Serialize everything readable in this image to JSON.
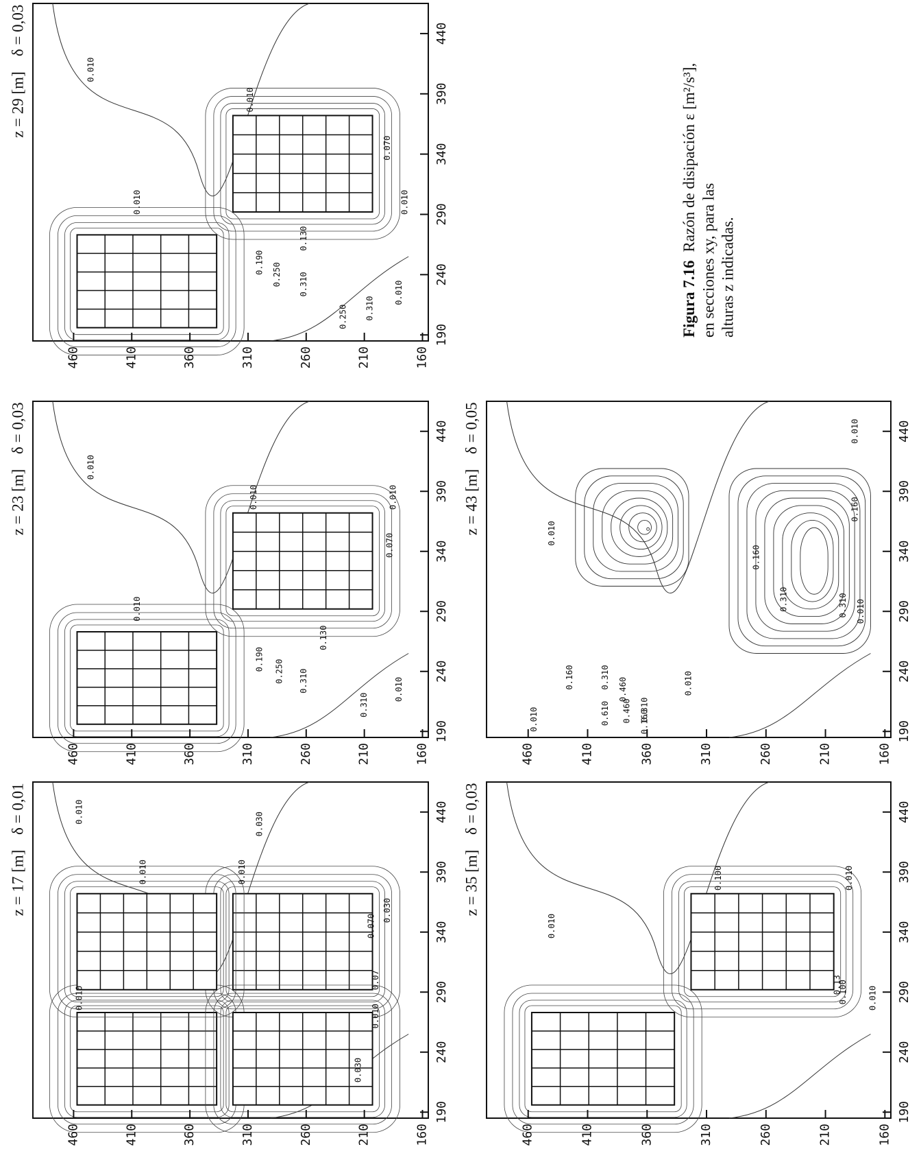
{
  "caption": {
    "figure": "Figura 7.16",
    "lines": [
      "Razón de disipación ε [m²/s³],",
      "en secciones xy, para las",
      "alturas z indicadas."
    ]
  },
  "panels": [
    {
      "z_label": "z = 29 [m]",
      "delta_label": "δ = 0,03",
      "xlim": [
        185,
        465
      ],
      "ylim": [
        155,
        495
      ],
      "xticks": [
        190,
        240,
        290,
        340,
        390,
        440
      ],
      "yticks": [
        160,
        210,
        260,
        310,
        360,
        410,
        460
      ],
      "contour_labels": [
        "0.010",
        "0.010",
        "0.010",
        "0.130",
        "0.250",
        "0.310",
        "0.310",
        "0.250",
        "0.190",
        "0.070",
        "0.010",
        "0.010"
      ]
    },
    {
      "z_label": "z = 23 [m]",
      "delta_label": "δ = 0,03",
      "xlim": [
        185,
        465
      ],
      "ylim": [
        155,
        495
      ],
      "xticks": [
        190,
        240,
        290,
        340,
        390,
        440
      ],
      "yticks": [
        160,
        210,
        260,
        310,
        360,
        410,
        460
      ],
      "contour_labels": [
        "0.010",
        "0.010",
        "0.010",
        "0.130",
        "0.250",
        "0.310",
        "0.190",
        "0.310",
        "0.070",
        "0.010",
        "0.010"
      ]
    },
    {
      "z_label": "z = 17 [m]",
      "delta_label": "δ = 0,01",
      "xlim": [
        185,
        465
      ],
      "ylim": [
        155,
        495
      ],
      "xticks": [
        190,
        240,
        290,
        340,
        390,
        440
      ],
      "yticks": [
        160,
        210,
        260,
        310,
        360,
        410,
        460
      ],
      "contour_labels": [
        "0.010",
        "0.030",
        "0.010",
        "0.010",
        "0.010",
        "0.030",
        "0.070",
        "0.07",
        "0.010",
        "0.030"
      ]
    },
    {
      "z_label": "z = 43 [m]",
      "delta_label": "δ = 0,05",
      "xlim": [
        185,
        465
      ],
      "ylim": [
        155,
        495
      ],
      "xticks": [
        190,
        240,
        290,
        340,
        390,
        440
      ],
      "yticks": [
        160,
        210,
        260,
        310,
        360,
        410,
        460
      ],
      "contour_labels": [
        "0.010",
        "0.160",
        "0.310",
        "0.460",
        "0.610",
        "0.460",
        "0.310",
        "0.160",
        "0.010",
        "0.010",
        "0.160",
        "0.160",
        "0.310",
        "0.310",
        "0.010",
        "0.010"
      ]
    },
    {
      "z_label": "z = 35 [m]",
      "delta_label": "δ = 0,03",
      "xlim": [
        185,
        465
      ],
      "ylim": [
        155,
        495
      ],
      "xticks": [
        190,
        240,
        290,
        340,
        390,
        440
      ],
      "yticks": [
        160,
        210,
        260,
        310,
        360,
        410,
        460
      ],
      "contour_labels": [
        "0.010",
        "0.100",
        "0.010",
        "0.100",
        "0.13",
        "0.010"
      ]
    }
  ]
}
